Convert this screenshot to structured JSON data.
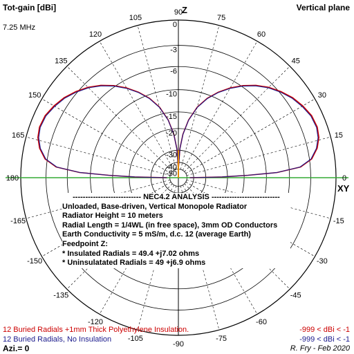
{
  "header": {
    "title": "Tot-gain [dBi]",
    "plane": "Vertical plane",
    "frequency": "7.25 MHz"
  },
  "labels": {
    "axis_z": "Z",
    "axis_xy": "XY",
    "azimuth": "Azi.= 0",
    "credit": "R. Fry - Feb 2020"
  },
  "info": {
    "heading": "NEC4.2 ANALYSIS",
    "lines": [
      "Unloaded, Base-driven, Vertical Monopole Radiator",
      "Radiator Height = 10 meters",
      "Radial Length = 1/4WL (in free space), 3mm OD Conductors",
      "Earth Conductivity = 5 mS/m, d.c. 12 (average Earth)",
      "Feedpoint Z:",
      "* Insulated Radials = 49.4 +j7.02 ohms",
      "* Uninsulatated Radials = 49 +j6.9 ohms"
    ]
  },
  "legend": [
    {
      "label": "12 Buried Radials +1mm Thick Polyethylene Insulation.",
      "range": "-999 < dBi < -1",
      "color": "#cc0000"
    },
    {
      "label": "12 Buried Radials, No Insulation",
      "range": "-999 < dBi < -1",
      "color": "#1a1a8c"
    }
  ],
  "chart_data": {
    "type": "polar",
    "radial_ticks": [
      "0",
      "-3",
      "-6",
      "-10",
      "-15",
      "-20",
      "-30",
      "-40",
      "-50"
    ],
    "radial_db": [
      0,
      -3,
      -6,
      -10,
      -15,
      -20,
      -30,
      -40,
      -50
    ],
    "angle_ticks": [
      90,
      75,
      60,
      45,
      30,
      15,
      0,
      -15,
      -30,
      -45,
      -60,
      -75,
      -90,
      -105,
      -120,
      -135,
      -150,
      -165,
      180,
      165,
      150,
      135,
      120,
      105
    ],
    "series": [
      {
        "name": "12 Buried Radials +1mm Thick Polyethylene Insulation.",
        "color": "#cc0000",
        "elevation_deg": [
          0,
          1,
          2,
          3,
          5,
          8,
          12,
          16,
          20,
          25,
          30,
          35,
          40,
          45,
          50,
          55,
          60,
          65,
          70,
          75,
          80,
          84,
          87,
          90
        ],
        "gain_dbi": [
          -45,
          -22,
          -14,
          -8,
          -4.3,
          -2.7,
          -1.8,
          -1.3,
          -1.1,
          -1.2,
          -1.6,
          -2.1,
          -2.8,
          -3.6,
          -4.6,
          -5.8,
          -7.2,
          -8.8,
          -10.7,
          -13.2,
          -17,
          -22,
          -29,
          -50
        ]
      },
      {
        "name": "12 Buried Radials, No Insulation",
        "color": "#1a1a8c",
        "elevation_deg": [
          0,
          1,
          2,
          3,
          5,
          8,
          12,
          16,
          20,
          25,
          30,
          35,
          40,
          45,
          50,
          55,
          60,
          65,
          70,
          75,
          80,
          84,
          87,
          90
        ],
        "gain_dbi": [
          -45,
          -22,
          -14,
          -8.1,
          -4.4,
          -2.8,
          -1.9,
          -1.4,
          -1.2,
          -1.3,
          -1.7,
          -2.2,
          -2.9,
          -3.7,
          -4.7,
          -5.9,
          -7.3,
          -8.9,
          -10.8,
          -13.3,
          -17.1,
          -22.1,
          -29.1,
          -50
        ]
      }
    ]
  }
}
